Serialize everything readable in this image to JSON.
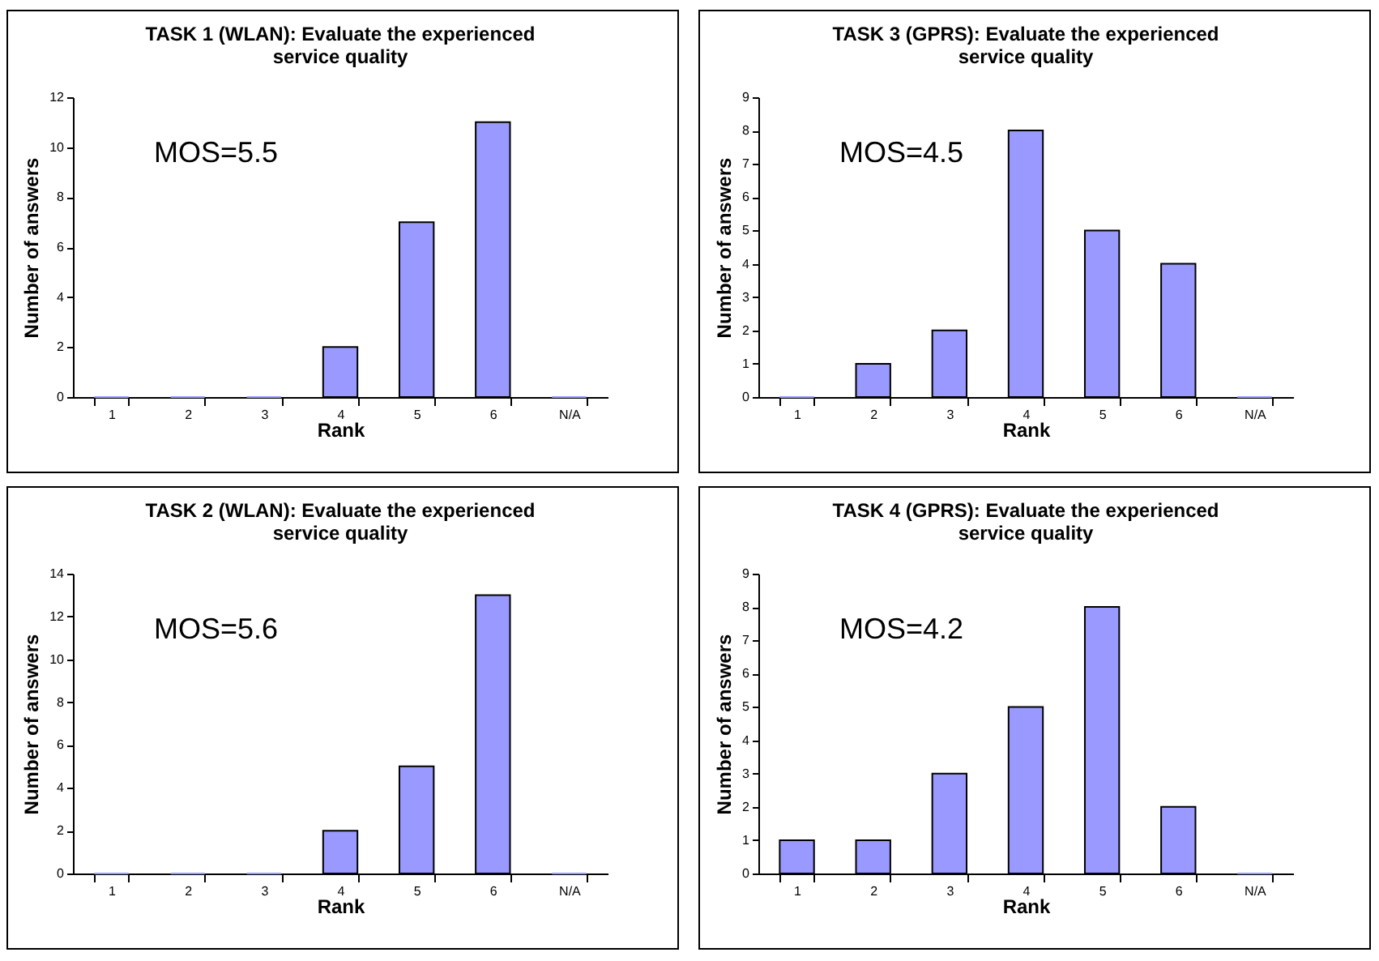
{
  "chart_data": [
    {
      "type": "bar",
      "title": "TASK 1 (WLAN): Evaluate the experienced service quality",
      "xlabel": "Rank",
      "ylabel": "Number of answers",
      "categories": [
        "1",
        "2",
        "3",
        "4",
        "5",
        "6",
        "N/A"
      ],
      "values": [
        0,
        0,
        0,
        2,
        7,
        11,
        0
      ],
      "color": "#9999ff",
      "ylim": [
        0,
        12
      ],
      "yticks": [
        0,
        2,
        4,
        6,
        8,
        10,
        12
      ],
      "grid": false,
      "annotations": [
        "MOS=5.5"
      ]
    },
    {
      "type": "bar",
      "title": "TASK 3 (GPRS): Evaluate the experienced service quality",
      "xlabel": "Rank",
      "ylabel": "Number of answers",
      "categories": [
        "1",
        "2",
        "3",
        "4",
        "5",
        "6",
        "N/A"
      ],
      "values": [
        0,
        1,
        2,
        8,
        5,
        4,
        0
      ],
      "color": "#9999ff",
      "ylim": [
        0,
        9
      ],
      "yticks": [
        0,
        1,
        2,
        3,
        4,
        5,
        6,
        7,
        8,
        9
      ],
      "grid": false,
      "annotations": [
        "MOS=4.5"
      ]
    },
    {
      "type": "bar",
      "title": "TASK 2 (WLAN): Evaluate the experienced service quality",
      "xlabel": "Rank",
      "ylabel": "Number of answers",
      "categories": [
        "1",
        "2",
        "3",
        "4",
        "5",
        "6",
        "N/A"
      ],
      "values": [
        0,
        0,
        0,
        2,
        5,
        13,
        0
      ],
      "color": "#9999ff",
      "ylim": [
        0,
        14
      ],
      "yticks": [
        0,
        2,
        4,
        6,
        8,
        10,
        12,
        14
      ],
      "grid": false,
      "annotations": [
        "MOS=5.6"
      ]
    },
    {
      "type": "bar",
      "title": "TASK 4 (GPRS): Evaluate the experienced service quality",
      "xlabel": "Rank",
      "ylabel": "Number of answers",
      "categories": [
        "1",
        "2",
        "3",
        "4",
        "5",
        "6",
        "N/A"
      ],
      "values": [
        1,
        1,
        3,
        5,
        8,
        2,
        0
      ],
      "color": "#9999ff",
      "ylim": [
        0,
        9
      ],
      "yticks": [
        0,
        1,
        2,
        3,
        4,
        5,
        6,
        7,
        8,
        9
      ],
      "grid": false,
      "annotations": [
        "MOS=4.2"
      ]
    }
  ]
}
